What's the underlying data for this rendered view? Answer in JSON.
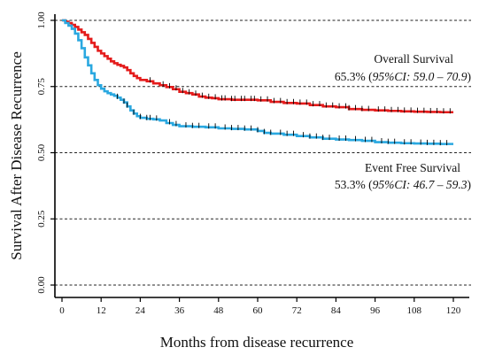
{
  "chart_data": {
    "type": "line",
    "xlabel": "Months from disease recurrence",
    "ylabel": "Survival After Disease Recurrence",
    "xlim": [
      0,
      120
    ],
    "ylim": [
      0,
      1
    ],
    "x_ticks": [
      "0",
      "12",
      "24",
      "36",
      "48",
      "60",
      "72",
      "84",
      "96",
      "108",
      "120"
    ],
    "y_ticks": [
      "0.00",
      "0.25",
      "0.50",
      "0.75",
      "1.00"
    ],
    "grid": "horizontal dashed",
    "annotations": {
      "os_name": "Overall Survival",
      "os_value": "65.3% (",
      "os_ci": "95%CI:  59.0 – 70.9",
      "os_close": ")",
      "efs_name": "Event Free Survival",
      "efs_value": "53.3% (",
      "efs_ci": "95%CI:  46.7 – 59.3",
      "efs_close": ")"
    },
    "series": [
      {
        "key": "os",
        "color": "#e41b1b",
        "points": [
          [
            0,
            1.0
          ],
          [
            1,
            0.995
          ],
          [
            2,
            0.99
          ],
          [
            3,
            0.983
          ],
          [
            4,
            0.975
          ],
          [
            5,
            0.965
          ],
          [
            6,
            0.955
          ],
          [
            7,
            0.945
          ],
          [
            8,
            0.93
          ],
          [
            9,
            0.915
          ],
          [
            10,
            0.9
          ],
          [
            11,
            0.885
          ],
          [
            12,
            0.875
          ],
          [
            13,
            0.865
          ],
          [
            14,
            0.855
          ],
          [
            15,
            0.845
          ],
          [
            16,
            0.838
          ],
          [
            17,
            0.832
          ],
          [
            18,
            0.828
          ],
          [
            19,
            0.822
          ],
          [
            20,
            0.812
          ],
          [
            21,
            0.8
          ],
          [
            22,
            0.79
          ],
          [
            23,
            0.782
          ],
          [
            24,
            0.775
          ],
          [
            26,
            0.77
          ],
          [
            28,
            0.762
          ],
          [
            30,
            0.755
          ],
          [
            32,
            0.748
          ],
          [
            34,
            0.74
          ],
          [
            36,
            0.73
          ],
          [
            38,
            0.725
          ],
          [
            40,
            0.72
          ],
          [
            42,
            0.712
          ],
          [
            44,
            0.708
          ],
          [
            46,
            0.706
          ],
          [
            48,
            0.702
          ],
          [
            52,
            0.7
          ],
          [
            56,
            0.7
          ],
          [
            60,
            0.698
          ],
          [
            64,
            0.692
          ],
          [
            68,
            0.688
          ],
          [
            72,
            0.686
          ],
          [
            76,
            0.68
          ],
          [
            80,
            0.675
          ],
          [
            84,
            0.672
          ],
          [
            88,
            0.665
          ],
          [
            92,
            0.662
          ],
          [
            96,
            0.66
          ],
          [
            100,
            0.658
          ],
          [
            104,
            0.656
          ],
          [
            108,
            0.655
          ],
          [
            112,
            0.654
          ],
          [
            116,
            0.653
          ],
          [
            120,
            0.653
          ]
        ],
        "censor_x": [
          27,
          31,
          33,
          35,
          37,
          39,
          41,
          43,
          45,
          47,
          49,
          50,
          52,
          53,
          55,
          56,
          58,
          59,
          61,
          63,
          65,
          67,
          69,
          71,
          73,
          75,
          77,
          79,
          81,
          83,
          85,
          87,
          88,
          90,
          92,
          94,
          97,
          99,
          101,
          103,
          105,
          107,
          109,
          111,
          113,
          115,
          117,
          119
        ]
      },
      {
        "key": "efs",
        "color": "#2aa8e0",
        "points": [
          [
            0,
            1.0
          ],
          [
            1,
            0.99
          ],
          [
            2,
            0.98
          ],
          [
            3,
            0.968
          ],
          [
            4,
            0.95
          ],
          [
            5,
            0.925
          ],
          [
            6,
            0.895
          ],
          [
            7,
            0.86
          ],
          [
            8,
            0.83
          ],
          [
            9,
            0.8
          ],
          [
            10,
            0.775
          ],
          [
            11,
            0.755
          ],
          [
            12,
            0.742
          ],
          [
            13,
            0.732
          ],
          [
            14,
            0.725
          ],
          [
            15,
            0.72
          ],
          [
            16,
            0.715
          ],
          [
            17,
            0.708
          ],
          [
            18,
            0.7
          ],
          [
            19,
            0.69
          ],
          [
            20,
            0.675
          ],
          [
            21,
            0.66
          ],
          [
            22,
            0.648
          ],
          [
            23,
            0.638
          ],
          [
            24,
            0.632
          ],
          [
            26,
            0.628
          ],
          [
            28,
            0.626
          ],
          [
            30,
            0.622
          ],
          [
            32,
            0.612
          ],
          [
            34,
            0.605
          ],
          [
            36,
            0.6
          ],
          [
            40,
            0.598
          ],
          [
            44,
            0.596
          ],
          [
            48,
            0.592
          ],
          [
            52,
            0.59
          ],
          [
            56,
            0.588
          ],
          [
            60,
            0.582
          ],
          [
            62,
            0.575
          ],
          [
            64,
            0.572
          ],
          [
            68,
            0.568
          ],
          [
            72,
            0.563
          ],
          [
            76,
            0.558
          ],
          [
            80,
            0.553
          ],
          [
            84,
            0.55
          ],
          [
            88,
            0.548
          ],
          [
            92,
            0.545
          ],
          [
            96,
            0.54
          ],
          [
            100,
            0.538
          ],
          [
            104,
            0.536
          ],
          [
            108,
            0.535
          ],
          [
            112,
            0.534
          ],
          [
            116,
            0.533
          ],
          [
            120,
            0.533
          ]
        ],
        "censor_x": [
          17,
          19,
          20,
          22,
          24,
          26,
          27,
          29,
          33,
          35,
          38,
          40,
          42,
          45,
          47,
          50,
          52,
          54,
          56,
          58,
          60,
          62,
          64,
          67,
          69,
          71,
          74,
          76,
          78,
          80,
          82,
          85,
          87,
          90,
          93,
          95,
          98,
          100,
          102,
          105,
          107,
          110,
          112,
          114,
          116,
          118
        ]
      }
    ]
  }
}
